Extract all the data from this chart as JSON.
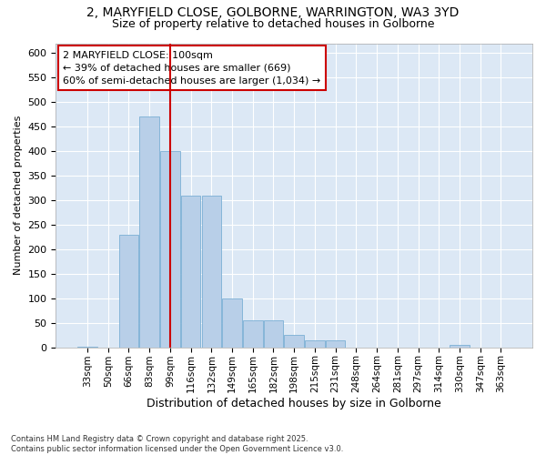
{
  "title_line1": "2, MARYFIELD CLOSE, GOLBORNE, WARRINGTON, WA3 3YD",
  "title_line2": "Size of property relative to detached houses in Golborne",
  "xlabel": "Distribution of detached houses by size in Golborne",
  "ylabel": "Number of detached properties",
  "categories": [
    "33sqm",
    "50sqm",
    "66sqm",
    "83sqm",
    "99sqm",
    "116sqm",
    "132sqm",
    "149sqm",
    "165sqm",
    "182sqm",
    "198sqm",
    "215sqm",
    "231sqm",
    "248sqm",
    "264sqm",
    "281sqm",
    "297sqm",
    "314sqm",
    "330sqm",
    "347sqm",
    "363sqm"
  ],
  "values": [
    2,
    0,
    230,
    470,
    400,
    310,
    310,
    100,
    55,
    55,
    25,
    15,
    15,
    0,
    0,
    0,
    0,
    0,
    5,
    0,
    0
  ],
  "bar_color": "#b8cfe8",
  "bar_edge_color": "#7bafd4",
  "vline_x_index": 4,
  "vline_color": "#cc0000",
  "ylim": [
    0,
    620
  ],
  "yticks": [
    0,
    50,
    100,
    150,
    200,
    250,
    300,
    350,
    400,
    450,
    500,
    550,
    600
  ],
  "annotation_text": "2 MARYFIELD CLOSE: 100sqm\n← 39% of detached houses are smaller (669)\n60% of semi-detached houses are larger (1,034) →",
  "annotation_box_color": "#ffffff",
  "annotation_box_edge": "#cc0000",
  "plot_bg_color": "#dce8f5",
  "fig_bg_color": "#ffffff",
  "footnote": "Contains HM Land Registry data © Crown copyright and database right 2025.\nContains public sector information licensed under the Open Government Licence v3.0."
}
